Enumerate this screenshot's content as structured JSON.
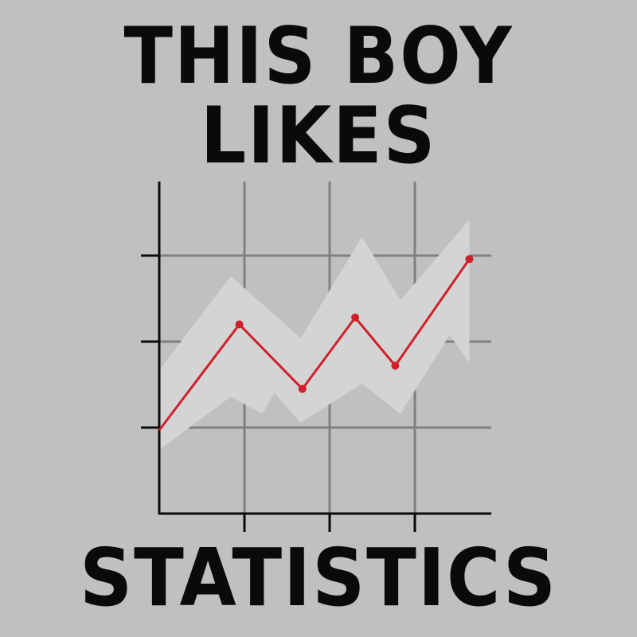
{
  "title": {
    "line1": "THIS BOY",
    "line2": "LIKES",
    "line3": "STATISTICS"
  },
  "colors": {
    "background": "#c0c0c0",
    "text": "#0a0a0a",
    "line": "#d0202a",
    "band": "#d4d4d4",
    "grid": "#808080",
    "axis": "#0a0a0a"
  },
  "chart_data": {
    "type": "line",
    "grid": true,
    "xlim": [
      0,
      3.9
    ],
    "ylim": [
      0,
      3.9
    ],
    "xticks": [
      1,
      2,
      3
    ],
    "yticks": [
      1,
      2,
      3
    ],
    "series": [
      {
        "x": [
          0,
          0.94,
          1.68,
          2.3,
          2.77,
          3.64
        ],
        "y": [
          0.97,
          2.2,
          1.45,
          2.28,
          1.72,
          2.96
        ]
      }
    ],
    "confidence_band": {
      "upper": {
        "x": [
          0,
          0.84,
          1.66,
          2.38,
          2.83,
          3.64
        ],
        "y": [
          1.67,
          2.76,
          2.04,
          3.22,
          2.48,
          3.42
        ]
      },
      "lower": {
        "x": [
          0,
          0.84,
          1.21,
          1.35,
          1.66,
          2.38,
          2.83,
          3.41,
          3.64
        ],
        "y": [
          0.74,
          1.36,
          1.16,
          1.4,
          1.06,
          1.51,
          1.16,
          2.08,
          1.75
        ]
      }
    }
  }
}
